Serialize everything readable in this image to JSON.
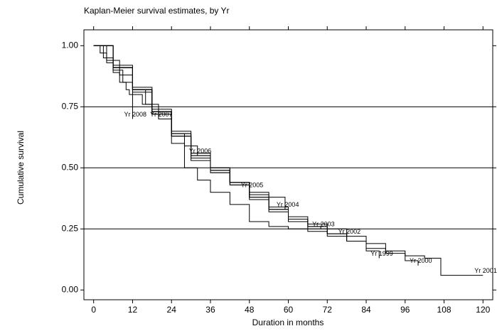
{
  "chart_data": {
    "type": "step",
    "title": "Kaplan-Meier survival estimates, by Yr",
    "x_label": "Duration in months",
    "y_label": "Cumulative survival",
    "xlim": [
      -3,
      123
    ],
    "ylim": [
      -0.04,
      1.065
    ],
    "xticks": [
      0,
      12,
      24,
      36,
      48,
      60,
      72,
      84,
      96,
      108,
      120
    ],
    "yticks": [
      {
        "value": 0,
        "label": "0.00"
      },
      0.25,
      {
        "value": 0.5,
        "label": "0.50"
      },
      0.75,
      {
        "value": 1,
        "label": "1.00"
      }
    ],
    "grid": true,
    "series": [
      {
        "name": "Yr 2008",
        "color": "#000000",
        "x": [
          0,
          2,
          4,
          6,
          8,
          10,
          11,
          12
        ],
        "values": [
          1,
          0.97,
          0.93,
          0.89,
          0.85,
          0.82,
          0.8,
          0.7
        ]
      },
      {
        "name": "Yr 2007",
        "color": "#000000",
        "x": [
          0,
          3,
          6,
          9,
          12,
          15,
          18,
          20
        ],
        "values": [
          1,
          0.95,
          0.9,
          0.85,
          0.8,
          0.76,
          0.72,
          0.7
        ]
      },
      {
        "name": "Yr 2006",
        "color": "#000000",
        "x": [
          0,
          4,
          8,
          12,
          16,
          20,
          24,
          28,
          32
        ],
        "values": [
          1,
          0.94,
          0.88,
          0.82,
          0.76,
          0.7,
          0.64,
          0.59,
          0.55
        ]
      },
      {
        "name": "Yr 2005",
        "color": "#000000",
        "x": [
          0,
          6,
          12,
          18,
          24,
          30,
          36,
          42,
          48
        ],
        "values": [
          1,
          0.91,
          0.82,
          0.73,
          0.63,
          0.53,
          0.48,
          0.44,
          0.41
        ]
      },
      {
        "name": "Yr 2004",
        "color": "#000000",
        "x": [
          0,
          6,
          12,
          18,
          24,
          30,
          36,
          42,
          48,
          54,
          59
        ],
        "values": [
          1,
          0.91,
          0.82,
          0.73,
          0.64,
          0.55,
          0.49,
          0.44,
          0.4,
          0.38,
          0.33
        ]
      },
      {
        "name": "Yr 2003",
        "color": "#000000",
        "x": [
          0,
          6,
          12,
          18,
          24,
          30,
          36,
          42,
          48,
          54,
          60,
          66,
          70
        ],
        "values": [
          1,
          0.91,
          0.82,
          0.73,
          0.64,
          0.56,
          0.5,
          0.43,
          0.37,
          0.33,
          0.29,
          0.26,
          0.25
        ]
      },
      {
        "name": "Yr 2002",
        "color": "#000000",
        "x": [
          0,
          6,
          12,
          18,
          24,
          30,
          36,
          42,
          48,
          54,
          60,
          66,
          72,
          78
        ],
        "values": [
          1,
          0.91,
          0.81,
          0.72,
          0.63,
          0.55,
          0.49,
          0.44,
          0.38,
          0.32,
          0.28,
          0.25,
          0.23,
          0.22
        ]
      },
      {
        "name": "Yr 2001",
        "color": "#000000",
        "x": [
          0,
          6,
          12,
          18,
          24,
          30,
          36,
          42,
          48,
          54,
          60,
          66,
          72,
          78,
          84,
          90,
          96,
          102,
          107,
          120
        ],
        "values": [
          1,
          0.91,
          0.82,
          0.73,
          0.63,
          0.54,
          0.48,
          0.43,
          0.38,
          0.33,
          0.29,
          0.26,
          0.23,
          0.2,
          0.17,
          0.15,
          0.14,
          0.13,
          0.06,
          0.06
        ]
      },
      {
        "name": "Yr 2000",
        "color": "#000000",
        "x": [
          0,
          6,
          12,
          18,
          24,
          30,
          36,
          42,
          48,
          54,
          60,
          66,
          72,
          78,
          84,
          90,
          96,
          100
        ],
        "values": [
          1,
          0.92,
          0.83,
          0.74,
          0.65,
          0.56,
          0.5,
          0.44,
          0.39,
          0.34,
          0.3,
          0.27,
          0.25,
          0.22,
          0.19,
          0.16,
          0.12,
          0.1
        ]
      },
      {
        "name": "Yr 1999",
        "color": "#000000",
        "x": [
          0,
          6,
          12,
          18,
          24,
          28,
          32,
          36,
          42,
          48,
          54,
          60,
          66,
          72,
          78,
          84,
          88
        ],
        "values": [
          1,
          0.91,
          0.82,
          0.72,
          0.6,
          0.5,
          0.45,
          0.4,
          0.35,
          0.28,
          0.26,
          0.25,
          0.24,
          0.22,
          0.2,
          0.16,
          0.13
        ]
      }
    ]
  }
}
